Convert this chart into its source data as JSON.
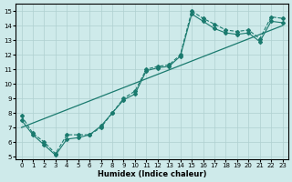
{
  "xlabel": "Humidex (Indice chaleur)",
  "background_color": "#ceeaea",
  "grid_color": "#afd0d0",
  "line_color": "#1a7a6e",
  "xlim": [
    -0.5,
    23.5
  ],
  "ylim": [
    4.8,
    15.5
  ],
  "yticks": [
    5,
    6,
    7,
    8,
    9,
    10,
    11,
    12,
    13,
    14,
    15
  ],
  "xticks": [
    0,
    1,
    2,
    3,
    4,
    5,
    6,
    7,
    8,
    9,
    10,
    11,
    12,
    13,
    14,
    15,
    16,
    17,
    18,
    19,
    20,
    21,
    22,
    23
  ],
  "line1_x": [
    0,
    23
  ],
  "line1_y": [
    7.0,
    14.0
  ],
  "line2_x": [
    0,
    1,
    2,
    3,
    4,
    5,
    6,
    7,
    8,
    9,
    10,
    11,
    12,
    13,
    14,
    15,
    16,
    17,
    18,
    19,
    20,
    21,
    22,
    23
  ],
  "line2_y": [
    7.8,
    6.6,
    6.0,
    5.2,
    6.5,
    6.5,
    6.5,
    7.0,
    8.0,
    9.0,
    9.5,
    11.0,
    11.2,
    11.3,
    12.0,
    15.0,
    14.5,
    14.1,
    13.7,
    13.6,
    13.7,
    13.1,
    14.6,
    14.5
  ],
  "line3_x": [
    0,
    1,
    2,
    3,
    4,
    5,
    6,
    7,
    8,
    9,
    10,
    11,
    12,
    13,
    14,
    15,
    16,
    17,
    18,
    19,
    20,
    21,
    22,
    23
  ],
  "line3_y": [
    7.5,
    6.5,
    5.8,
    5.1,
    6.2,
    6.3,
    6.5,
    7.1,
    8.0,
    8.9,
    9.3,
    10.9,
    11.1,
    11.2,
    11.9,
    14.8,
    14.3,
    13.8,
    13.5,
    13.4,
    13.5,
    12.9,
    14.3,
    14.2
  ]
}
